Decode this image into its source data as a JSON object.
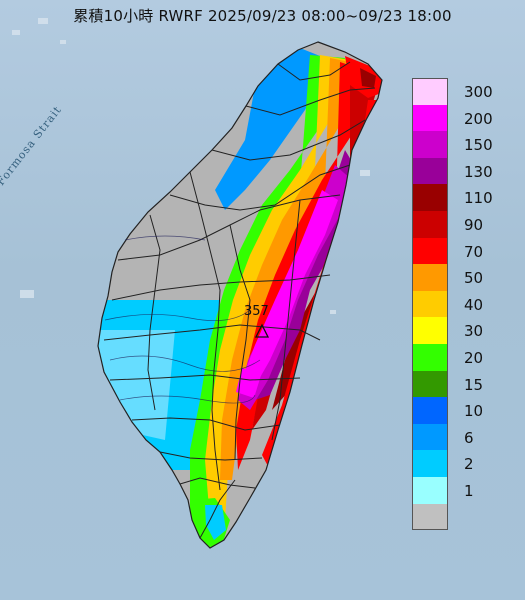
{
  "title": "累積10小時 RWRF 2025/09/23 08:00~09/23 18:00",
  "strait_label": "Formosa Strait",
  "max_station": {
    "value": "357"
  },
  "legend": [
    {
      "label": "300",
      "color": "#ffccff"
    },
    {
      "label": "200",
      "color": "#ff00ff"
    },
    {
      "label": "150",
      "color": "#cc00cc"
    },
    {
      "label": "130",
      "color": "#990099"
    },
    {
      "label": "110",
      "color": "#990000"
    },
    {
      "label": "90",
      "color": "#cc0000"
    },
    {
      "label": "70",
      "color": "#ff0000"
    },
    {
      "label": "50",
      "color": "#ff9900"
    },
    {
      "label": "40",
      "color": "#ffcc00"
    },
    {
      "label": "30",
      "color": "#ffff00"
    },
    {
      "label": "20",
      "color": "#33ff00"
    },
    {
      "label": "15",
      "color": "#339900"
    },
    {
      "label": "10",
      "color": "#0066ff"
    },
    {
      "label": "6",
      "color": "#0099ff"
    },
    {
      "label": "2",
      "color": "#00ccff"
    },
    {
      "label": "1",
      "color": "#99ffff"
    },
    {
      "label": "",
      "color": "#c0c0c0"
    }
  ],
  "colors": {
    "sea": "#a9c4d8",
    "no_rain": "#b4b4b4",
    "county_border": "#222222"
  }
}
